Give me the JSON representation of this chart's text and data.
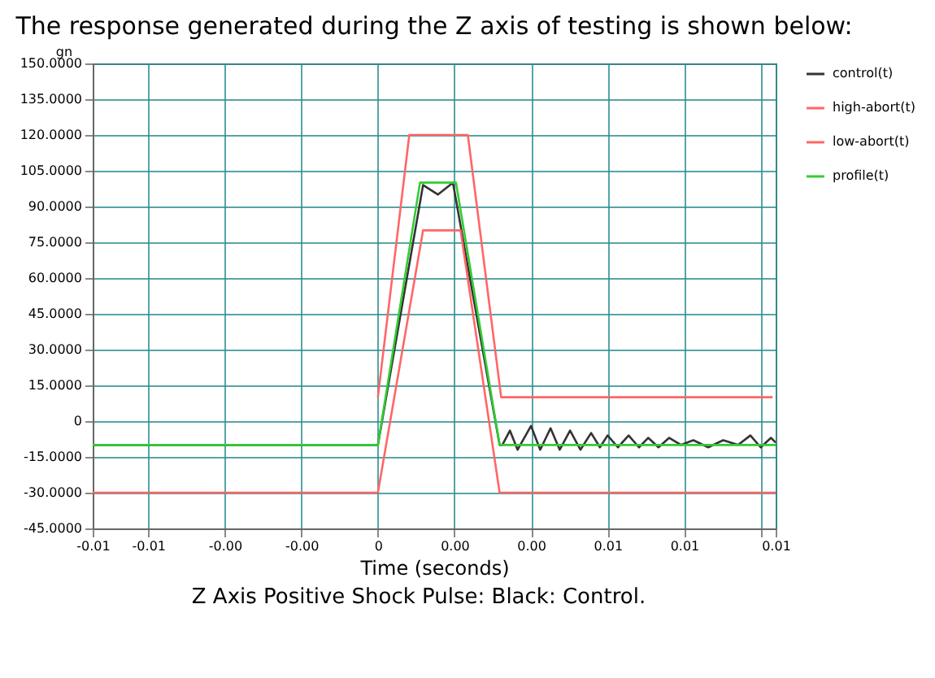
{
  "chart_data": {
    "type": "line",
    "title": "The response generated during the Z axis of testing is shown below:",
    "xlabel": "Time (seconds)",
    "ylabel": "gn",
    "annotations": [
      "Z Axis Positive Shock Pulse: Black: Control."
    ],
    "xlim": [
      -0.00745,
      0.01039
    ],
    "xticks": [
      {
        "value": -0.00745,
        "label": "-0.01"
      },
      {
        "value": -0.006,
        "label": "-0.01"
      },
      {
        "value": -0.004,
        "label": "-0.00"
      },
      {
        "value": -0.002,
        "label": "-0.00"
      },
      0,
      {
        "value": 0.002,
        "label": "0.00"
      },
      {
        "value": 0.004,
        "label": "0.00"
      },
      {
        "value": 0.006,
        "label": "0.01"
      },
      {
        "value": 0.008,
        "label": "0.01"
      },
      {
        "value": 0.01,
        "label": null
      },
      {
        "value": 0.01039,
        "label": "0.01"
      }
    ],
    "ylim": [
      -45,
      150
    ],
    "yticks": [
      {
        "value": 150,
        "label": "150.0000"
      },
      {
        "value": 135,
        "label": "135.0000"
      },
      {
        "value": 120,
        "label": "120.0000"
      },
      {
        "value": 105,
        "label": "105.0000"
      },
      {
        "value": 90,
        "label": "90.0000"
      },
      {
        "value": 75,
        "label": "75.0000"
      },
      {
        "value": 60,
        "label": "60.0000"
      },
      {
        "value": 45,
        "label": "45.0000"
      },
      {
        "value": 30,
        "label": "30.0000"
      },
      {
        "value": 15,
        "label": "15.0000"
      },
      0,
      {
        "value": -15,
        "label": "-15.0000"
      },
      {
        "value": -30,
        "label": "-30.0000"
      },
      {
        "value": -45,
        "label": "-45.0000"
      }
    ],
    "grid": true,
    "legend": "right",
    "marker": "none",
    "series": [
      {
        "name": "control(t)",
        "color": "#333333",
        "x": [
          -0.00745,
          0,
          0.00118,
          0.00157,
          0.00196,
          0.00318,
          0.00325,
          0.00345,
          0.00365,
          0.004,
          0.00424,
          0.00451,
          0.00475,
          0.00502,
          0.00529,
          0.00557,
          0.0058,
          0.006,
          0.00627,
          0.00655,
          0.00682,
          0.00706,
          0.00733,
          0.00761,
          0.00792,
          0.00824,
          0.00863,
          0.00902,
          0.00941,
          0.00973,
          0.01,
          0.01027,
          0.01039
        ],
        "values": [
          -10,
          -10,
          99,
          95,
          100,
          -10,
          -10,
          -4,
          -12,
          -2,
          -12,
          -3,
          -12,
          -4,
          -12,
          -5,
          -11,
          -6,
          -11,
          -6,
          -11,
          -7,
          -11,
          -7,
          -10,
          -8,
          -11,
          -8,
          -10,
          -6,
          -11,
          -7,
          -9
        ]
      },
      {
        "name": "high-abort(t)",
        "color": "#ff6666",
        "x": [
          0,
          0,
          0.00082,
          0.00235,
          0.00322,
          0.01031
        ],
        "values": [
          10,
          10,
          120,
          120,
          10,
          10
        ]
      },
      {
        "name": "low-abort(t)",
        "color": "#ff6666",
        "x": [
          -0.00745,
          0,
          0.00118,
          0.00216,
          0.00318,
          0.01039
        ],
        "values": [
          -30,
          -30,
          80,
          80,
          -30,
          -30
        ]
      },
      {
        "name": "profile(t)",
        "color": "#33cc33",
        "x": [
          -0.00745,
          0,
          0.0011,
          0.00204,
          0.00318,
          0.01039
        ],
        "values": [
          -10,
          -10,
          100,
          100,
          -10,
          -10
        ]
      }
    ]
  }
}
